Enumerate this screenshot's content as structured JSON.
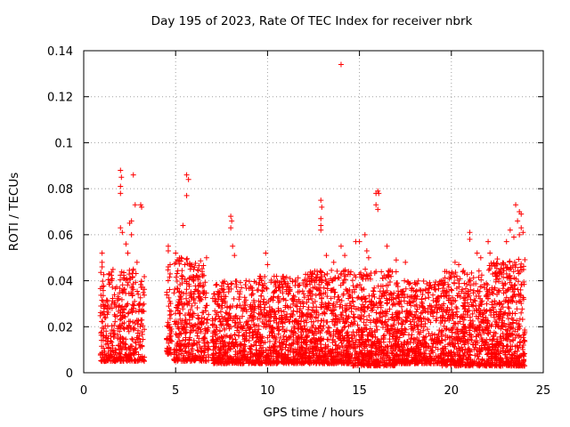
{
  "chart_data": {
    "type": "scatter",
    "title": "Day 195 of 2023, Rate Of TEC Index for receiver nbrk",
    "xlabel": "GPS time / hours",
    "ylabel": "ROTI / TECUs",
    "xlim": [
      0,
      25
    ],
    "ylim": [
      0,
      0.14
    ],
    "xticks": [
      0,
      5,
      10,
      15,
      20,
      25
    ],
    "yticks": [
      0,
      0.02,
      0.04,
      0.06,
      0.08,
      0.1,
      0.12,
      0.14
    ],
    "xtick_labels": [
      "0",
      "5",
      "10",
      "15",
      "20",
      "25"
    ],
    "ytick_labels": [
      "0",
      "0.02",
      "0.04",
      "0.06",
      "0.08",
      "0.1",
      "0.12",
      "0.14"
    ],
    "grid": true,
    "marker": "+",
    "color": "#ff0000",
    "series": [
      {
        "name": "ROTI",
        "points": [
          [
            1.0,
            0.052
          ],
          [
            1.0,
            0.048
          ],
          [
            1.0,
            0.046
          ],
          [
            1.1,
            0.028
          ],
          [
            1.2,
            0.024
          ],
          [
            2.0,
            0.088
          ],
          [
            2.05,
            0.085
          ],
          [
            2.0,
            0.081
          ],
          [
            2.0,
            0.078
          ],
          [
            2.0,
            0.063
          ],
          [
            2.1,
            0.061
          ],
          [
            2.3,
            0.056
          ],
          [
            2.4,
            0.052
          ],
          [
            2.7,
            0.086
          ],
          [
            2.8,
            0.073
          ],
          [
            2.6,
            0.066
          ],
          [
            2.5,
            0.065
          ],
          [
            2.6,
            0.06
          ],
          [
            3.1,
            0.073
          ],
          [
            3.15,
            0.072
          ],
          [
            2.9,
            0.048
          ],
          [
            2.7,
            0.045
          ],
          [
            2.2,
            0.041
          ],
          [
            4.6,
            0.055
          ],
          [
            4.6,
            0.053
          ],
          [
            4.7,
            0.047
          ],
          [
            4.6,
            0.046
          ],
          [
            4.7,
            0.043
          ],
          [
            5.0,
            0.052
          ],
          [
            5.4,
            0.064
          ],
          [
            5.6,
            0.086
          ],
          [
            5.7,
            0.084
          ],
          [
            5.6,
            0.077
          ],
          [
            5.3,
            0.05
          ],
          [
            5.5,
            0.047
          ],
          [
            5.8,
            0.045
          ],
          [
            8.0,
            0.068
          ],
          [
            8.05,
            0.066
          ],
          [
            8.0,
            0.063
          ],
          [
            8.1,
            0.055
          ],
          [
            8.2,
            0.051
          ],
          [
            9.9,
            0.052
          ],
          [
            10.0,
            0.047
          ],
          [
            12.9,
            0.075
          ],
          [
            12.95,
            0.072
          ],
          [
            12.9,
            0.067
          ],
          [
            12.9,
            0.064
          ],
          [
            12.9,
            0.062
          ],
          [
            13.2,
            0.051
          ],
          [
            13.6,
            0.048
          ],
          [
            14.0,
            0.134
          ],
          [
            14.0,
            0.055
          ],
          [
            14.2,
            0.051
          ],
          [
            14.8,
            0.057
          ],
          [
            15.0,
            0.057
          ],
          [
            15.3,
            0.06
          ],
          [
            15.4,
            0.053
          ],
          [
            15.5,
            0.05
          ],
          [
            15.9,
            0.078
          ],
          [
            16.0,
            0.079
          ],
          [
            16.05,
            0.078
          ],
          [
            15.9,
            0.073
          ],
          [
            16.0,
            0.071
          ],
          [
            16.5,
            0.055
          ],
          [
            17.0,
            0.049
          ],
          [
            17.5,
            0.048
          ],
          [
            20.2,
            0.048
          ],
          [
            20.4,
            0.047
          ],
          [
            21.0,
            0.061
          ],
          [
            21.0,
            0.058
          ],
          [
            21.4,
            0.052
          ],
          [
            21.6,
            0.05
          ],
          [
            22.0,
            0.057
          ],
          [
            22.1,
            0.052
          ],
          [
            23.0,
            0.057
          ],
          [
            23.2,
            0.062
          ],
          [
            23.4,
            0.059
          ],
          [
            23.5,
            0.073
          ],
          [
            23.7,
            0.07
          ],
          [
            23.8,
            0.069
          ],
          [
            23.6,
            0.066
          ],
          [
            23.8,
            0.063
          ],
          [
            23.9,
            0.061
          ],
          [
            23.7,
            0.06
          ]
        ],
        "dense_bands": [
          {
            "x": [
              0.9,
              3.3
            ],
            "y": [
              0.005,
              0.045
            ],
            "n": 420
          },
          {
            "x": [
              4.5,
              4.8
            ],
            "y": [
              0.008,
              0.045
            ],
            "n": 50
          },
          {
            "x": [
              4.9,
              6.8
            ],
            "y": [
              0.005,
              0.05
            ],
            "n": 380
          },
          {
            "x": [
              7.0,
              9.5
            ],
            "y": [
              0.004,
              0.04
            ],
            "n": 520
          },
          {
            "x": [
              9.5,
              12.0
            ],
            "y": [
              0.004,
              0.042
            ],
            "n": 560
          },
          {
            "x": [
              12.0,
              14.6
            ],
            "y": [
              0.004,
              0.045
            ],
            "n": 600
          },
          {
            "x": [
              14.6,
              17.0
            ],
            "y": [
              0.003,
              0.045
            ],
            "n": 540
          },
          {
            "x": [
              17.0,
              19.5
            ],
            "y": [
              0.004,
              0.04
            ],
            "n": 520
          },
          {
            "x": [
              19.5,
              22.0
            ],
            "y": [
              0.003,
              0.045
            ],
            "n": 560
          },
          {
            "x": [
              22.0,
              24.0
            ],
            "y": [
              0.003,
              0.05
            ],
            "n": 500
          }
        ]
      }
    ]
  }
}
